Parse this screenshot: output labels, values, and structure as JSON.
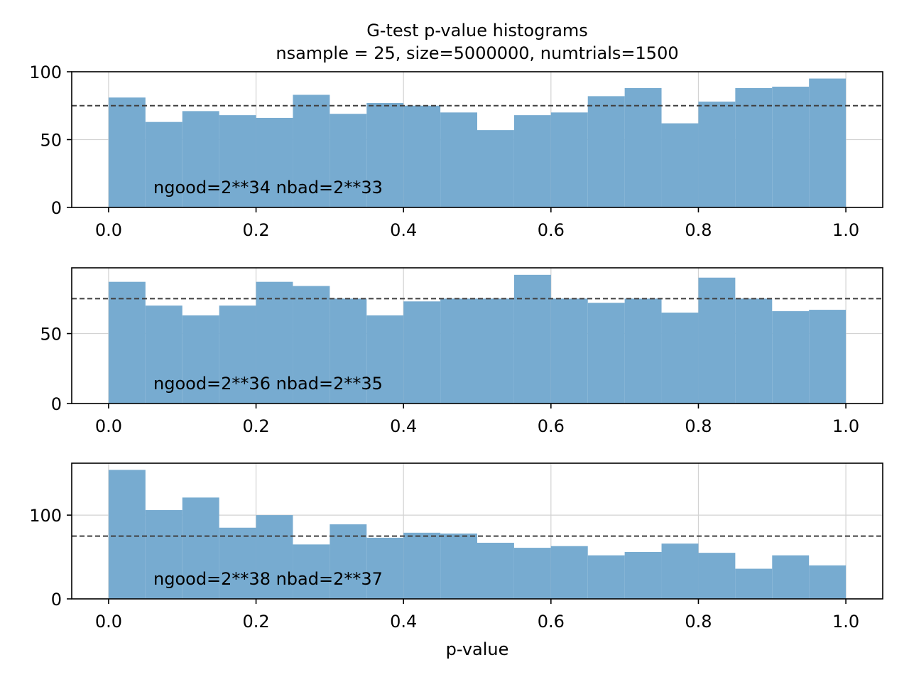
{
  "chart_data": {
    "type": "bar",
    "title": "G-test p-value histograms",
    "subtitle": "nsample = 25, size=5000000, numtrials=1500",
    "xlabel": "p-value",
    "bin_edges": [
      0.0,
      0.05,
      0.1,
      0.15,
      0.2,
      0.25,
      0.3,
      0.35,
      0.4,
      0.45,
      0.5,
      0.55,
      0.6,
      0.65,
      0.7,
      0.75,
      0.8,
      0.85,
      0.9,
      0.95,
      1.0
    ],
    "xlim": [
      -0.05,
      1.05
    ],
    "xticks": [
      "0.0",
      "0.2",
      "0.4",
      "0.6",
      "0.8",
      "1.0"
    ],
    "expected_count": 75,
    "bar_color": "#77abd0",
    "reference_line_color": "#404040",
    "grid": true,
    "panels": [
      {
        "annotation": "ngood=2**34  nbad=2**33",
        "ylim": [
          0,
          100
        ],
        "yticks": [
          0,
          50,
          100
        ],
        "counts": [
          81,
          63,
          71,
          68,
          66,
          83,
          69,
          77,
          75,
          70,
          57,
          68,
          70,
          82,
          88,
          62,
          78,
          88,
          89,
          95
        ]
      },
      {
        "annotation": "ngood=2**36  nbad=2**35",
        "ylim": [
          0,
          97
        ],
        "yticks": [
          0,
          50
        ],
        "counts": [
          87,
          70,
          63,
          70,
          87,
          84,
          75,
          63,
          73,
          75,
          75,
          92,
          75,
          72,
          75,
          65,
          90,
          75,
          66,
          67
        ]
      },
      {
        "annotation": "ngood=2**38  nbad=2**37",
        "ylim": [
          0,
          162
        ],
        "yticks": [
          0,
          100
        ],
        "counts": [
          154,
          106,
          121,
          85,
          100,
          65,
          89,
          73,
          79,
          78,
          67,
          61,
          63,
          52,
          56,
          66,
          55,
          36,
          52,
          40
        ]
      }
    ]
  }
}
